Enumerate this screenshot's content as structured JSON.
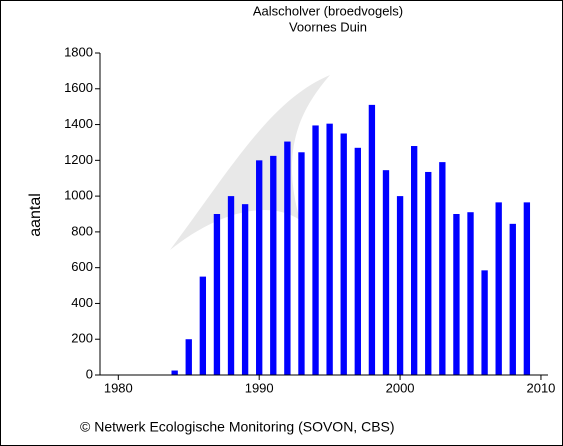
{
  "chart_data": {
    "type": "bar",
    "title": "Aalscholver (broedvogels)",
    "subtitle": "Voornes Duin",
    "y_label": "aantal",
    "footer": "© Netwerk Ecologische Monitoring (SOVON, CBS)",
    "x": [
      1984,
      1985,
      1986,
      1987,
      1988,
      1989,
      1990,
      1991,
      1992,
      1993,
      1994,
      1995,
      1996,
      1997,
      1998,
      1999,
      2000,
      2001,
      2002,
      2003,
      2004,
      2005,
      2006,
      2007,
      2008,
      2009
    ],
    "values": [
      25,
      200,
      550,
      900,
      1000,
      955,
      1200,
      1225,
      1305,
      1245,
      1395,
      1405,
      1350,
      1270,
      1510,
      1145,
      1000,
      1280,
      1135,
      1190,
      900,
      910,
      585,
      965,
      845,
      965
    ],
    "color": "#0000ff",
    "xlim": [
      1978.7,
      2010.5
    ],
    "xticks": [
      1980,
      1990,
      2000,
      2010
    ],
    "ylim": [
      0,
      1800
    ],
    "yticks": [
      0,
      200,
      400,
      600,
      800,
      1000,
      1200,
      1400,
      1600,
      1800
    ]
  }
}
